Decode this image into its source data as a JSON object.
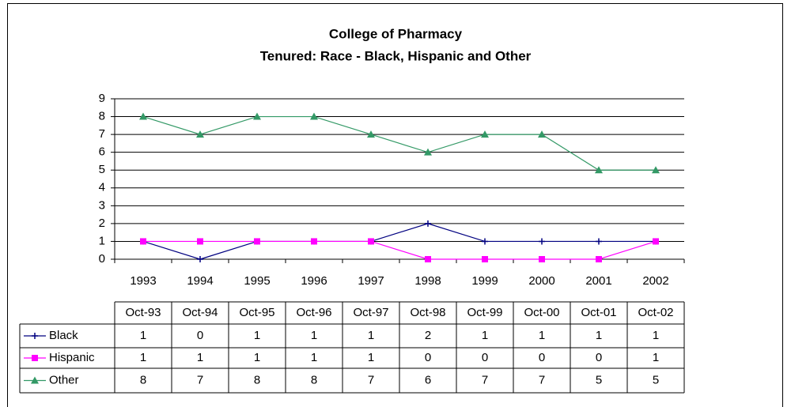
{
  "chart_data": {
    "type": "line",
    "title": [
      "College of Pharmacy",
      "Tenured: Race - Black, Hispanic and Other"
    ],
    "categories": [
      "1993",
      "1994",
      "1995",
      "1996",
      "1997",
      "1998",
      "1999",
      "2000",
      "2001",
      "2002"
    ],
    "table_columns": [
      "Oct-93",
      "Oct-94",
      "Oct-95",
      "Oct-96",
      "Oct-97",
      "Oct-98",
      "Oct-99",
      "Oct-00",
      "Oct-01",
      "Oct-02"
    ],
    "series": [
      {
        "name": "Black",
        "color": "#000080",
        "marker": "plus",
        "values": [
          1,
          0,
          1,
          1,
          1,
          2,
          1,
          1,
          1,
          1
        ]
      },
      {
        "name": "Hispanic",
        "color": "#ff00ff",
        "marker": "square",
        "values": [
          1,
          1,
          1,
          1,
          1,
          0,
          0,
          0,
          0,
          1
        ]
      },
      {
        "name": "Other",
        "color": "#339966",
        "marker": "triangle",
        "values": [
          8,
          7,
          8,
          8,
          7,
          6,
          7,
          7,
          5,
          5
        ]
      }
    ],
    "ylim": [
      0,
      9
    ],
    "yticks": [
      0,
      1,
      2,
      3,
      4,
      5,
      6,
      7,
      8,
      9
    ],
    "grid": true
  }
}
